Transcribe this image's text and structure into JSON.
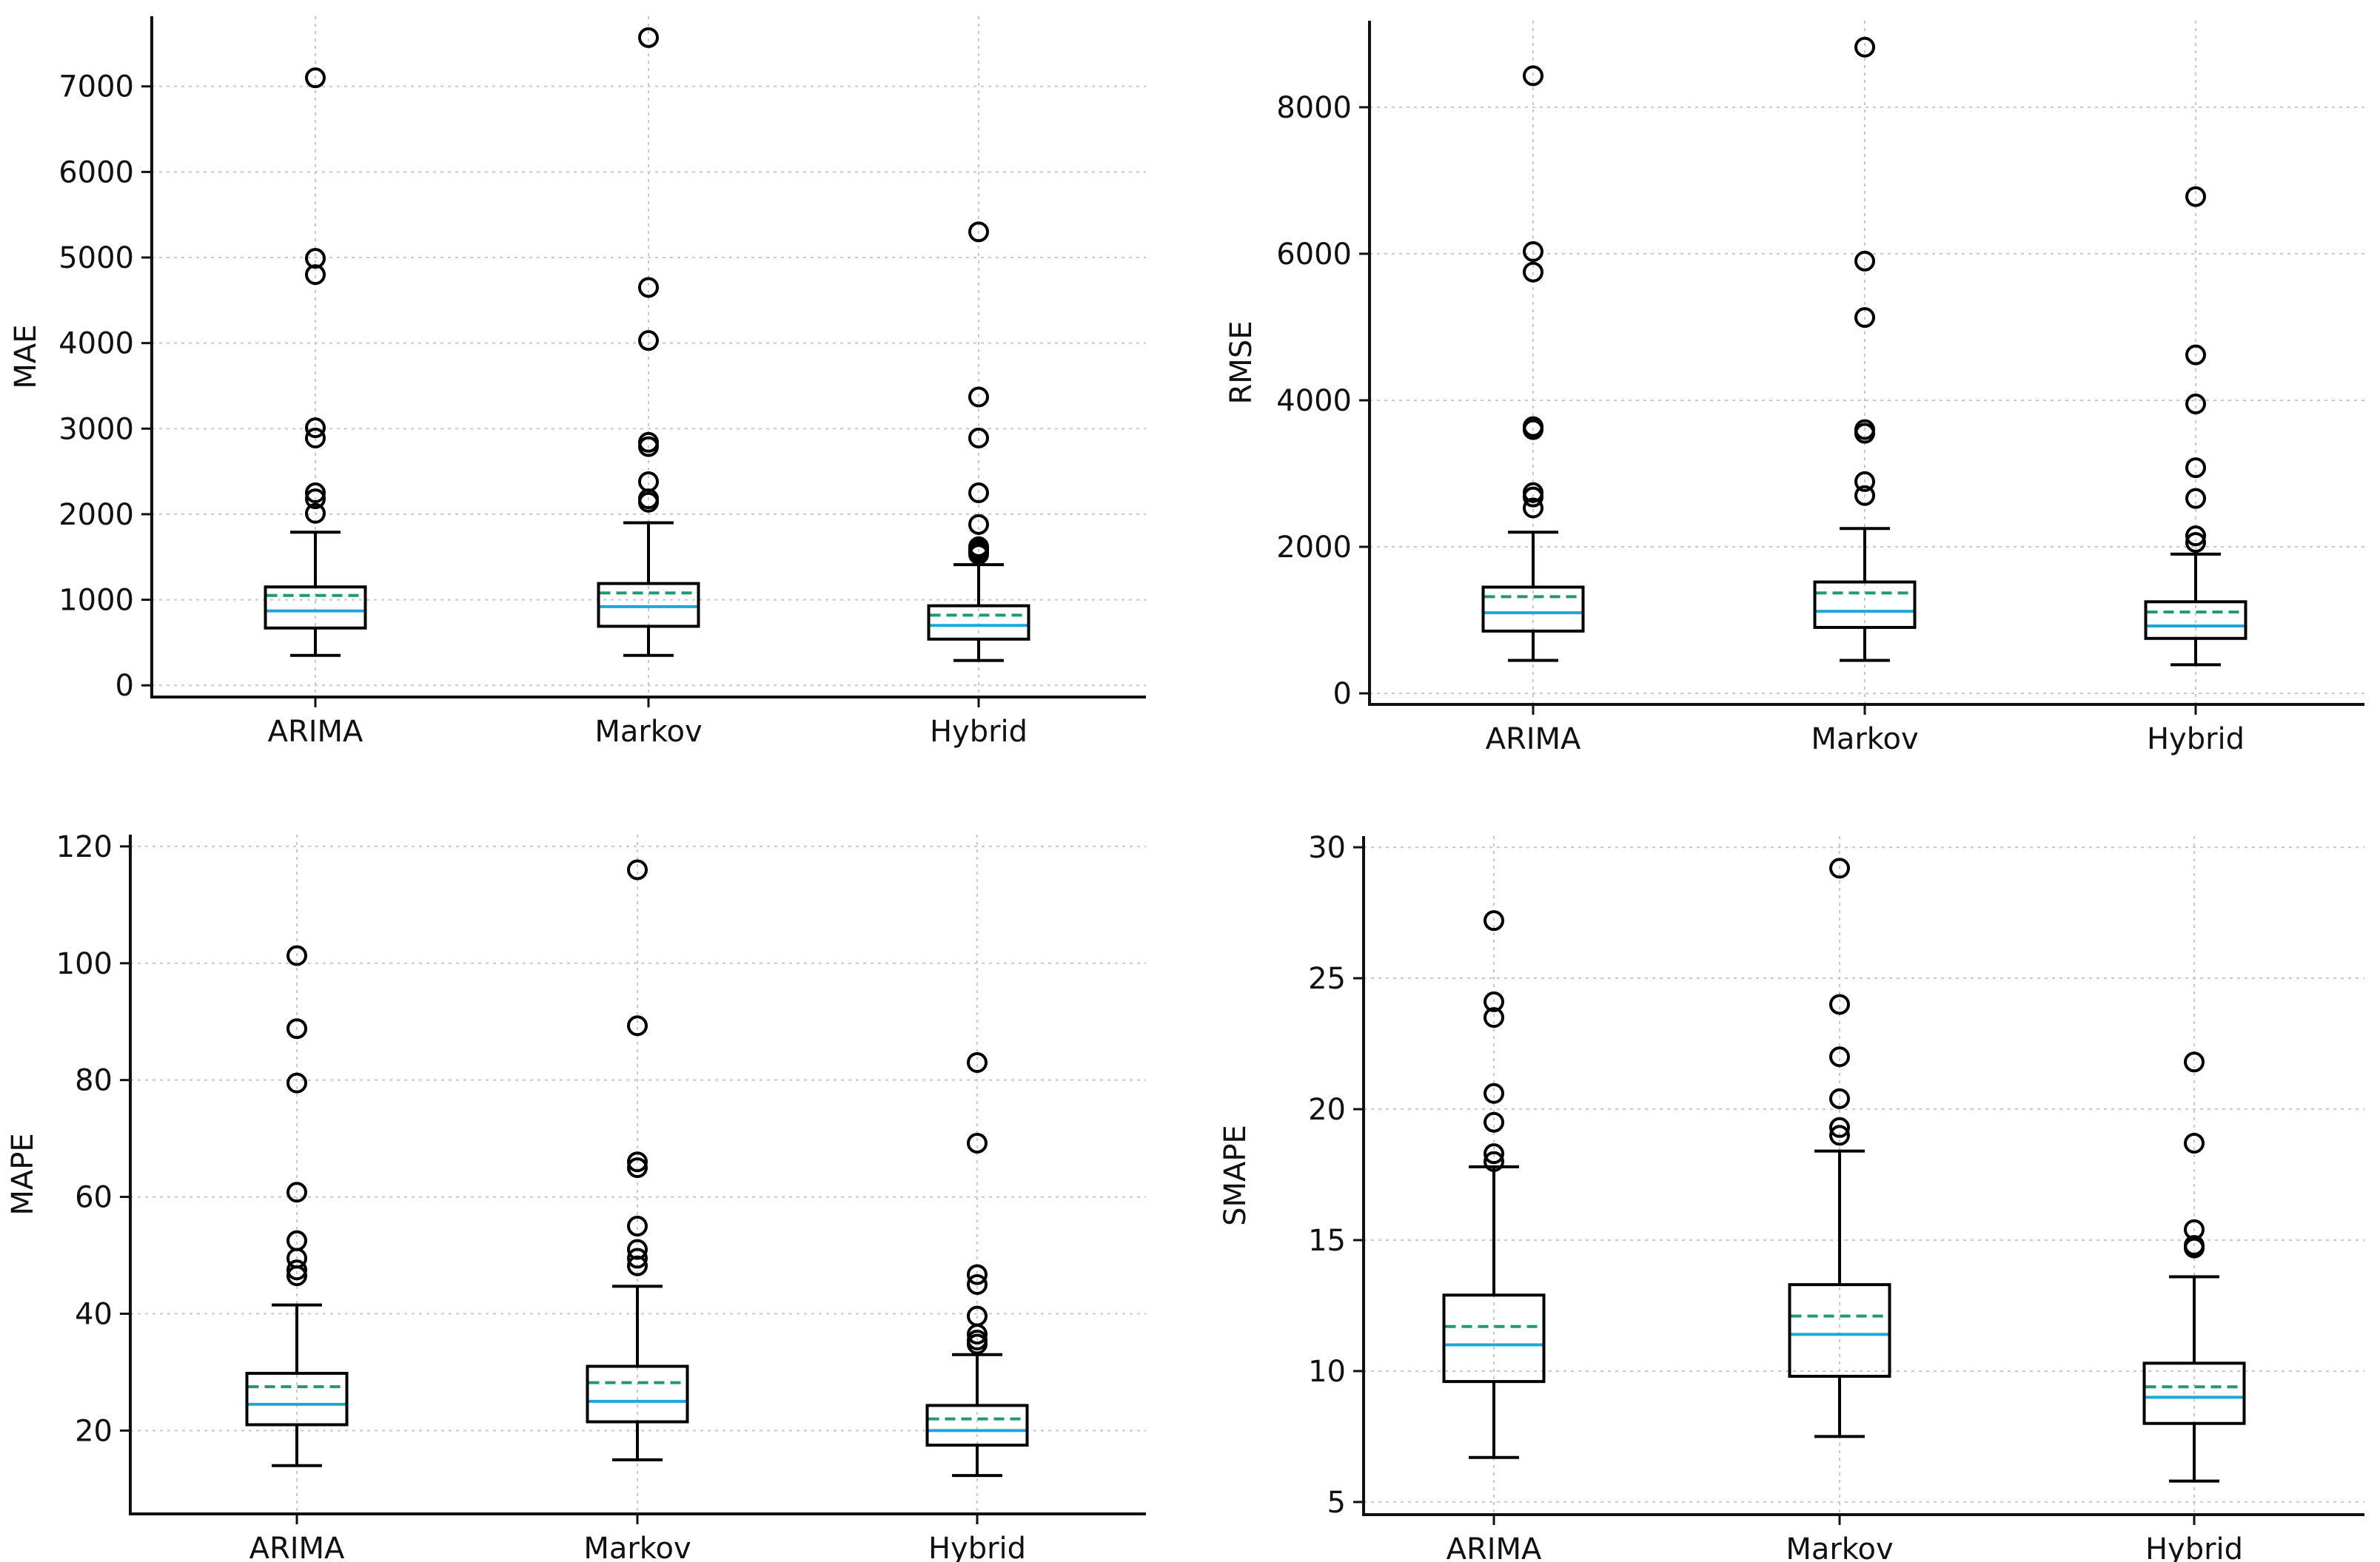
{
  "colors": {
    "median": "#1aa7d9",
    "mean": "#1f9a6e",
    "box": "#000000",
    "grid": "#c8c8c8"
  },
  "chart_data": [
    {
      "type": "box",
      "ylabel": "MAE",
      "categories": [
        "ARIMA",
        "Markov",
        "Hybrid"
      ],
      "ylim": [
        -50,
        7750
      ],
      "yticks": [
        0,
        1000,
        2000,
        3000,
        4000,
        5000,
        6000,
        7000
      ],
      "grid": true,
      "boxes": [
        {
          "name": "ARIMA",
          "whislo": 350,
          "q1": 670,
          "med": 870,
          "mean": 1050,
          "q3": 1150,
          "whishi": 1790,
          "fliers": [
            2010,
            2180,
            2250,
            2890,
            3010,
            4800,
            4990,
            7100
          ]
        },
        {
          "name": "Markov",
          "whislo": 350,
          "q1": 690,
          "med": 920,
          "mean": 1080,
          "q3": 1190,
          "whishi": 1900,
          "fliers": [
            2140,
            2180,
            2380,
            2790,
            2840,
            4030,
            4650,
            7570
          ]
        },
        {
          "name": "Hybrid",
          "whislo": 290,
          "q1": 540,
          "med": 700,
          "mean": 820,
          "q3": 930,
          "whishi": 1410,
          "fliers": [
            1530,
            1560,
            1590,
            1620,
            1880,
            2250,
            2890,
            3370,
            5300
          ]
        }
      ]
    },
    {
      "type": "box",
      "ylabel": "RMSE",
      "categories": [
        "ARIMA",
        "Markov",
        "Hybrid"
      ],
      "ylim": [
        -50,
        9100
      ],
      "yticks": [
        0,
        2000,
        4000,
        6000,
        8000
      ],
      "grid": true,
      "boxes": [
        {
          "name": "ARIMA",
          "whislo": 450,
          "q1": 850,
          "med": 1100,
          "mean": 1320,
          "q3": 1450,
          "whishi": 2200,
          "fliers": [
            2530,
            2680,
            2740,
            3600,
            3640,
            5750,
            6030,
            8430
          ]
        },
        {
          "name": "Markov",
          "whislo": 450,
          "q1": 900,
          "med": 1120,
          "mean": 1370,
          "q3": 1520,
          "whishi": 2250,
          "fliers": [
            2700,
            2890,
            3550,
            3600,
            5130,
            5900,
            8820
          ]
        },
        {
          "name": "Hybrid",
          "whislo": 390,
          "q1": 750,
          "med": 920,
          "mean": 1110,
          "q3": 1250,
          "whishi": 1900,
          "fliers": [
            2060,
            2150,
            2660,
            3080,
            3950,
            4620,
            6780
          ]
        }
      ]
    },
    {
      "type": "box",
      "ylabel": "MAPE",
      "categories": [
        "ARIMA",
        "Markov",
        "Hybrid"
      ],
      "ylim": [
        7,
        121
      ],
      "yticks": [
        20,
        40,
        60,
        80,
        100,
        120
      ],
      "grid": true,
      "boxes": [
        {
          "name": "ARIMA",
          "whislo": 14,
          "q1": 21,
          "med": 24.5,
          "mean": 27.5,
          "q3": 29.8,
          "whishi": 41.5,
          "fliers": [
            46.5,
            47.5,
            49.5,
            52.5,
            60.8,
            79.5,
            88.8,
            101.3
          ]
        },
        {
          "name": "Markov",
          "whislo": 15,
          "q1": 21.5,
          "med": 25,
          "mean": 28.2,
          "q3": 31,
          "whishi": 44.7,
          "fliers": [
            48.2,
            49.5,
            51,
            55,
            65,
            66,
            89.3,
            116
          ]
        },
        {
          "name": "Hybrid",
          "whislo": 12.3,
          "q1": 17.5,
          "med": 20,
          "mean": 22,
          "q3": 24.3,
          "whishi": 33,
          "fliers": [
            34.8,
            35.5,
            36.5,
            39.6,
            45,
            46.7,
            69.2,
            83
          ]
        }
      ]
    },
    {
      "type": "box",
      "ylabel": "SMAPE",
      "categories": [
        "ARIMA",
        "Markov",
        "Hybrid"
      ],
      "ylim": [
        4.8,
        30.2
      ],
      "yticks": [
        5,
        10,
        15,
        20,
        25,
        30
      ],
      "grid": true,
      "boxes": [
        {
          "name": "ARIMA",
          "whislo": 6.7,
          "q1": 9.6,
          "med": 11,
          "mean": 11.7,
          "q3": 12.9,
          "whishi": 17.8,
          "fliers": [
            18,
            18.3,
            19.5,
            20.6,
            23.5,
            24.1,
            27.2
          ]
        },
        {
          "name": "Markov",
          "whislo": 7.5,
          "q1": 9.8,
          "med": 11.4,
          "mean": 12.1,
          "q3": 13.3,
          "whishi": 18.4,
          "fliers": [
            19,
            19.3,
            20.4,
            22,
            24,
            29.2
          ]
        },
        {
          "name": "Hybrid",
          "whislo": 5.8,
          "q1": 8,
          "med": 9,
          "mean": 9.4,
          "q3": 10.3,
          "whishi": 13.6,
          "fliers": [
            14.7,
            14.8,
            15.4,
            18.7,
            21.8
          ]
        }
      ]
    }
  ]
}
